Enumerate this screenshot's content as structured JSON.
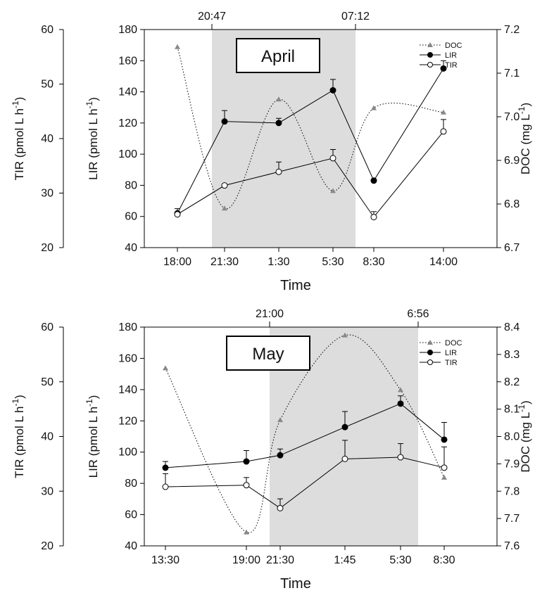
{
  "chart_data": [
    {
      "type": "line",
      "panel_label": "April",
      "xlabel": "Time",
      "x_ticks": [
        "18:00",
        "21:30",
        "1:30",
        "5:30",
        "8:30",
        "14:00"
      ],
      "night_start_label": "20:47",
      "night_end_label": "07:12",
      "shaded_period": [
        "20:47",
        "07:12"
      ],
      "y_left_outer": {
        "label": "TIR (pmol L h",
        "superscript": "-1",
        "suffix": ")",
        "range": [
          20,
          60
        ],
        "ticks": [
          "20",
          "30",
          "40",
          "50",
          "60"
        ]
      },
      "y_left_inner": {
        "label": "LIR (pmol L h",
        "superscript": "-1",
        "suffix": ")",
        "range": [
          40,
          180
        ],
        "ticks": [
          "40",
          "60",
          "80",
          "100",
          "120",
          "140",
          "160",
          "180"
        ]
      },
      "y_right": {
        "label": "DOC (mg L",
        "superscript": "-1",
        "suffix": ")",
        "range": [
          6.7,
          7.2
        ],
        "ticks": [
          "6.7",
          "6.8",
          "6.9",
          "7.0",
          "7.1",
          "7.2"
        ]
      },
      "legend": [
        "DOC",
        "LIR",
        "TIR"
      ],
      "legend_position": "top-right",
      "series": [
        {
          "name": "DOC",
          "axis": "DOC",
          "style": "dotted",
          "marker": "triangle",
          "color": "#888888",
          "y": [
            7.16,
            6.79,
            7.04,
            6.83,
            7.02,
            7.01
          ]
        },
        {
          "name": "LIR",
          "axis": "LIR",
          "style": "solid",
          "marker": "filled-circle",
          "color": "#000000",
          "y": [
            62,
            121,
            120,
            141,
            83,
            155
          ],
          "error": [
            3,
            7,
            3,
            7,
            1,
            5
          ]
        },
        {
          "name": "TIR",
          "axis": "TIR",
          "style": "solid",
          "marker": "open-circle",
          "color": "#000000",
          "y": [
            26.1,
            31.4,
            33.9,
            36.4,
            25.6,
            41.3
          ],
          "error": [
            0,
            0,
            1.8,
            1.6,
            1.0,
            2.2
          ]
        }
      ]
    },
    {
      "type": "line",
      "panel_label": "May",
      "xlabel": "Time",
      "x_ticks": [
        "13:30",
        "19:00",
        "21:30",
        "1:45",
        "5:30",
        "8:30"
      ],
      "night_start_label": "21:00",
      "night_end_label": "6:56",
      "shaded_period": [
        "21:00",
        "6:56"
      ],
      "y_left_outer": {
        "label": "TIR (pmol L h",
        "superscript": "-1",
        "suffix": ")",
        "range": [
          20,
          60
        ],
        "ticks": [
          "20",
          "30",
          "40",
          "50",
          "60"
        ]
      },
      "y_left_inner": {
        "label": "LIR (pmol L h",
        "superscript": "-1",
        "suffix": ")",
        "range": [
          40,
          180
        ],
        "ticks": [
          "40",
          "60",
          "80",
          "100",
          "120",
          "140",
          "160",
          "180"
        ]
      },
      "y_right": {
        "label": "DOC (mg L",
        "superscript": "-1",
        "suffix": ")",
        "range": [
          7.6,
          8.4
        ],
        "ticks": [
          "7.6",
          "7.7",
          "7.8",
          "7.9",
          "8.0",
          "8.1",
          "8.2",
          "8.3",
          "8.4"
        ]
      },
      "legend": [
        "DOC",
        "LIR",
        "TIR"
      ],
      "legend_position": "top-right",
      "series": [
        {
          "name": "DOC",
          "axis": "DOC",
          "style": "dotted",
          "marker": "triangle",
          "color": "#888888",
          "y": [
            8.25,
            7.65,
            8.06,
            8.37,
            8.17,
            7.85
          ]
        },
        {
          "name": "LIR",
          "axis": "LIR",
          "style": "solid",
          "marker": "filled-circle",
          "color": "#000000",
          "y": [
            90,
            94,
            98,
            116,
            131,
            108
          ],
          "error": [
            4,
            7,
            4,
            10,
            5,
            11
          ]
        },
        {
          "name": "TIR",
          "axis": "TIR",
          "style": "solid",
          "marker": "open-circle",
          "color": "#000000",
          "y": [
            30.8,
            31.1,
            26.9,
            35.9,
            36.2,
            34.3
          ],
          "error": [
            2.4,
            1.4,
            1.7,
            3.4,
            2.5,
            3.8
          ]
        }
      ]
    }
  ]
}
